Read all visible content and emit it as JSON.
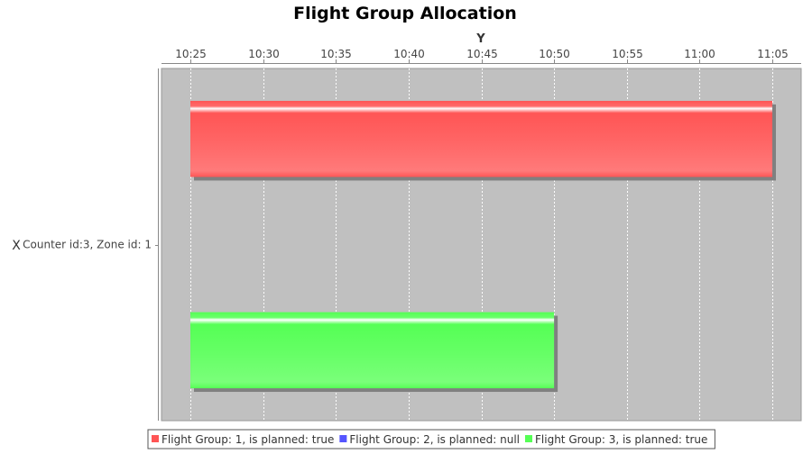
{
  "chart_data": {
    "type": "bar",
    "orientation": "horizontal",
    "subtype": "gantt",
    "title": "Flight Group Allocation",
    "xlabel": "Y",
    "ylabel": "X",
    "categories": [
      "Counter id:3, Zone id: 1"
    ],
    "x_axis": {
      "type": "time",
      "range": [
        "10:25",
        "11:05"
      ],
      "ticks": [
        "10:25",
        "10:30",
        "10:35",
        "10:40",
        "10:45",
        "10:50",
        "10:55",
        "11:00",
        "11:05"
      ],
      "position": "top"
    },
    "series": [
      {
        "name": "Flight Group: 1, is planned: true",
        "color": "#ff5555",
        "tasks": [
          {
            "category": "Counter id:3, Zone id: 1",
            "start": "10:25",
            "end": "11:05"
          }
        ]
      },
      {
        "name": "Flight Group: 2, is planned: null",
        "color": "#5555ff",
        "tasks": []
      },
      {
        "name": "Flight Group: 3, is planned: true",
        "color": "#55ff55",
        "tasks": [
          {
            "category": "Counter id:3, Zone id: 1",
            "start": "10:25",
            "end": "10:50"
          }
        ]
      }
    ],
    "grid": "vertical",
    "legend_position": "bottom",
    "plot_background": "#c0c0c0"
  }
}
